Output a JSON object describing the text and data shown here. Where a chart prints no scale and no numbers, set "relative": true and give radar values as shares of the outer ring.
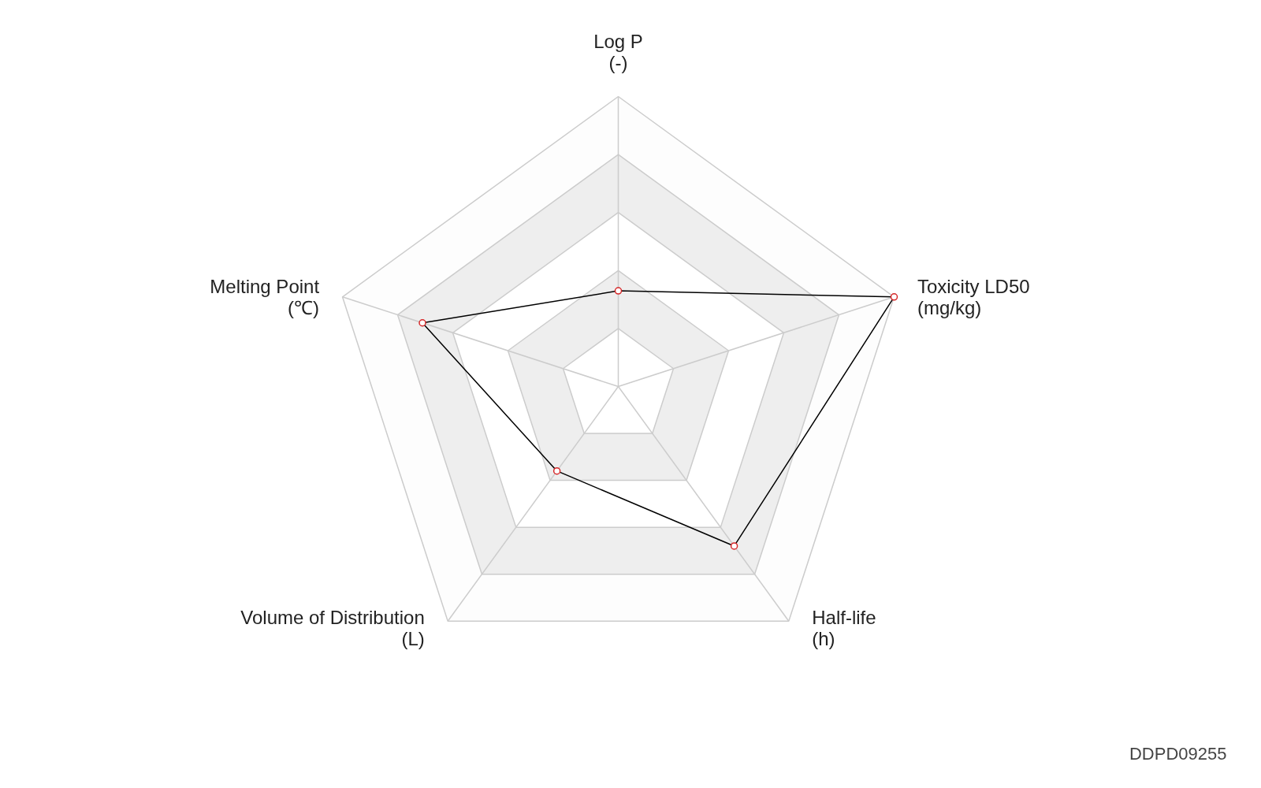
{
  "chart_data": {
    "type": "radar",
    "relative": true,
    "grid": true,
    "marker": "circle",
    "line_style": "solid",
    "categories": [
      "Log P\n(-)",
      "Toxicity LD50\n(mg/kg)",
      "Half-life\n(h)",
      "Volume of Distribution\n(L)",
      "Melting Point\n(℃)"
    ],
    "series": [
      {
        "color": "#000000",
        "values": [
          0.33,
          1.0,
          0.68,
          0.36,
          0.71
        ]
      }
    ],
    "annotations": [
      "DDPD09255"
    ]
  }
}
